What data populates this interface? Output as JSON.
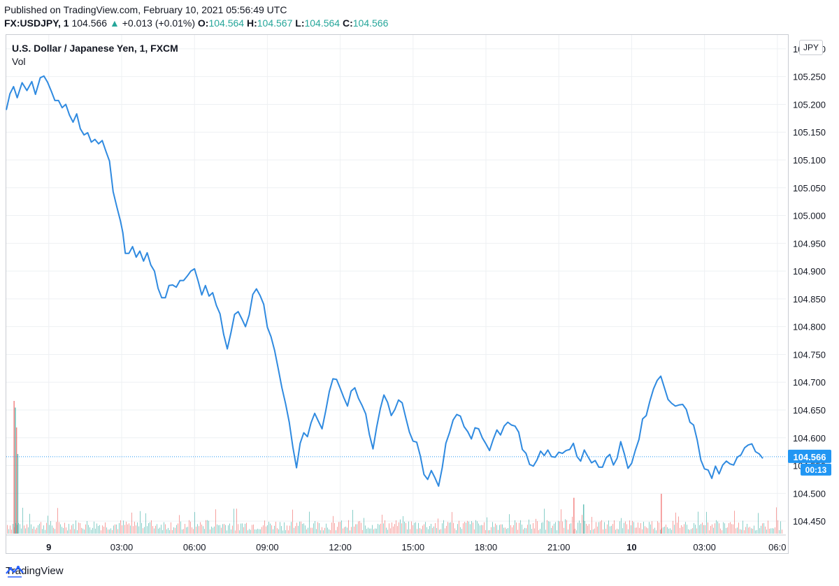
{
  "header": {
    "published": "Published on TradingView.com, February 10, 2021 05:56:49 UTC",
    "symbol": "FX:USDJPY, 1",
    "last": "104.566",
    "arrow": "▲",
    "change": "+0.013 (+0.01%)",
    "o_label": "O:",
    "o_value": "104.564",
    "h_label": "H:",
    "h_value": "104.567",
    "l_label": "L:",
    "l_value": "104.564",
    "c_label": "C:",
    "c_value": "104.566"
  },
  "legend": {
    "title": "U.S. Dollar / Japanese Yen, 1, FXCM",
    "vol": "Vol"
  },
  "currency_button": "JPY",
  "price_tag": {
    "value": "104.566",
    "countdown": "00:13"
  },
  "footer": {
    "brand": "TradingView",
    "icon": "tradingview-logo-icon"
  },
  "colors": {
    "line": "#2f8ae0",
    "grid": "#eef0f3",
    "up": "#26a69a",
    "vol_up": "#26a69a",
    "vol_down": "#ef5350",
    "tag": "#2196f3"
  },
  "chart_data": {
    "type": "line",
    "title": "U.S. Dollar / Japanese Yen, 1, FXCM",
    "ylim": [
      104.425,
      105.325
    ],
    "y_ticks": [
      "105.300",
      "105.250",
      "105.200",
      "105.150",
      "105.100",
      "105.050",
      "105.000",
      "104.950",
      "104.900",
      "104.850",
      "104.800",
      "104.750",
      "104.700",
      "104.650",
      "104.600",
      "104.550",
      "104.500",
      "104.450"
    ],
    "x_ticks": [
      {
        "label": "9",
        "hour": 0,
        "bold": true
      },
      {
        "label": "03:00",
        "hour": 3
      },
      {
        "label": "06:00",
        "hour": 6
      },
      {
        "label": "09:00",
        "hour": 9
      },
      {
        "label": "12:00",
        "hour": 12
      },
      {
        "label": "15:00",
        "hour": 15
      },
      {
        "label": "18:00",
        "hour": 18
      },
      {
        "label": "21:00",
        "hour": 21
      },
      {
        "label": "10",
        "hour": 24,
        "bold": true
      },
      {
        "label": "03:00",
        "hour": 27
      },
      {
        "label": "06:0",
        "hour": 30
      }
    ],
    "xlim_hours": [
      -1.75,
      30.35
    ],
    "last_price": 104.566,
    "series": [
      {
        "name": "USDJPY",
        "points": [
          [
            -1.75,
            105.19
          ],
          [
            -1.6,
            105.22
          ],
          [
            -1.45,
            105.23
          ],
          [
            -1.3,
            105.215
          ],
          [
            -1.1,
            105.235
          ],
          [
            -0.9,
            105.225
          ],
          [
            -0.7,
            105.24
          ],
          [
            -0.55,
            105.22
          ],
          [
            -0.35,
            105.245
          ],
          [
            -0.2,
            105.255
          ],
          [
            -0.05,
            105.24
          ],
          [
            0.1,
            105.225
          ],
          [
            0.25,
            105.205
          ],
          [
            0.4,
            105.21
          ],
          [
            0.55,
            105.19
          ],
          [
            0.7,
            105.2
          ],
          [
            0.85,
            105.18
          ],
          [
            1.0,
            105.17
          ],
          [
            1.15,
            105.18
          ],
          [
            1.3,
            105.16
          ],
          [
            1.45,
            105.145
          ],
          [
            1.6,
            105.15
          ],
          [
            1.75,
            105.13
          ],
          [
            1.9,
            105.14
          ],
          [
            2.05,
            105.125
          ],
          [
            2.2,
            105.135
          ],
          [
            2.35,
            105.115
          ],
          [
            2.5,
            105.1
          ],
          [
            2.65,
            105.04
          ],
          [
            2.8,
            105.02
          ],
          [
            2.95,
            104.99
          ],
          [
            3.05,
            104.97
          ],
          [
            3.15,
            104.93
          ],
          [
            3.3,
            104.935
          ],
          [
            3.45,
            104.94
          ],
          [
            3.6,
            104.925
          ],
          [
            3.75,
            104.935
          ],
          [
            3.9,
            104.92
          ],
          [
            4.05,
            104.93
          ],
          [
            4.2,
            104.915
          ],
          [
            4.35,
            104.9
          ],
          [
            4.5,
            104.87
          ],
          [
            4.65,
            104.85
          ],
          [
            4.8,
            104.855
          ],
          [
            4.95,
            104.87
          ],
          [
            5.1,
            104.875
          ],
          [
            5.25,
            104.87
          ],
          [
            5.4,
            104.885
          ],
          [
            5.55,
            104.88
          ],
          [
            5.7,
            104.895
          ],
          [
            5.85,
            104.9
          ],
          [
            6.0,
            104.905
          ],
          [
            6.15,
            104.88
          ],
          [
            6.3,
            104.86
          ],
          [
            6.45,
            104.87
          ],
          [
            6.6,
            104.855
          ],
          [
            6.75,
            104.86
          ],
          [
            6.9,
            104.84
          ],
          [
            7.05,
            104.82
          ],
          [
            7.2,
            104.79
          ],
          [
            7.35,
            104.76
          ],
          [
            7.5,
            104.79
          ],
          [
            7.65,
            104.82
          ],
          [
            7.8,
            104.83
          ],
          [
            7.95,
            104.81
          ],
          [
            8.1,
            104.8
          ],
          [
            8.25,
            104.82
          ],
          [
            8.4,
            104.86
          ],
          [
            8.55,
            104.865
          ],
          [
            8.7,
            104.86
          ],
          [
            8.85,
            104.84
          ],
          [
            9.0,
            104.8
          ],
          [
            9.15,
            104.78
          ],
          [
            9.3,
            104.76
          ],
          [
            9.45,
            104.72
          ],
          [
            9.6,
            104.69
          ],
          [
            9.75,
            104.66
          ],
          [
            9.9,
            104.63
          ],
          [
            10.05,
            104.58
          ],
          [
            10.2,
            104.55
          ],
          [
            10.35,
            104.59
          ],
          [
            10.5,
            104.61
          ],
          [
            10.65,
            104.6
          ],
          [
            10.8,
            104.63
          ],
          [
            10.95,
            104.64
          ],
          [
            11.1,
            104.63
          ],
          [
            11.25,
            104.615
          ],
          [
            11.4,
            104.65
          ],
          [
            11.55,
            104.68
          ],
          [
            11.7,
            104.71
          ],
          [
            11.85,
            104.705
          ],
          [
            12.0,
            104.69
          ],
          [
            12.15,
            104.67
          ],
          [
            12.3,
            104.66
          ],
          [
            12.45,
            104.68
          ],
          [
            12.6,
            104.69
          ],
          [
            12.75,
            104.67
          ],
          [
            12.9,
            104.66
          ],
          [
            13.05,
            104.64
          ],
          [
            13.2,
            104.61
          ],
          [
            13.35,
            104.58
          ],
          [
            13.5,
            104.62
          ],
          [
            13.65,
            104.65
          ],
          [
            13.8,
            104.68
          ],
          [
            13.95,
            104.66
          ],
          [
            14.1,
            104.64
          ],
          [
            14.25,
            104.65
          ],
          [
            14.4,
            104.67
          ],
          [
            14.55,
            104.66
          ],
          [
            14.7,
            104.64
          ],
          [
            14.85,
            104.61
          ],
          [
            15.0,
            104.595
          ],
          [
            15.15,
            104.59
          ],
          [
            15.3,
            104.57
          ],
          [
            15.45,
            104.53
          ],
          [
            15.6,
            104.525
          ],
          [
            15.75,
            104.54
          ],
          [
            15.9,
            104.53
          ],
          [
            16.05,
            104.51
          ],
          [
            16.2,
            104.55
          ],
          [
            16.35,
            104.59
          ],
          [
            16.5,
            104.61
          ],
          [
            16.65,
            104.63
          ],
          [
            16.8,
            104.645
          ],
          [
            16.95,
            104.635
          ],
          [
            17.1,
            104.62
          ],
          [
            17.25,
            104.61
          ],
          [
            17.4,
            104.6
          ],
          [
            17.55,
            104.615
          ],
          [
            17.7,
            104.62
          ],
          [
            17.85,
            104.6
          ],
          [
            18.0,
            104.59
          ],
          [
            18.15,
            104.575
          ],
          [
            18.3,
            104.6
          ],
          [
            18.45,
            104.61
          ],
          [
            18.6,
            104.605
          ],
          [
            18.75,
            104.62
          ],
          [
            18.9,
            104.63
          ],
          [
            19.05,
            104.62
          ],
          [
            19.2,
            104.625
          ],
          [
            19.35,
            104.61
          ],
          [
            19.5,
            104.58
          ],
          [
            19.65,
            104.57
          ],
          [
            19.8,
            104.555
          ],
          [
            19.95,
            104.545
          ],
          [
            20.1,
            104.56
          ],
          [
            20.25,
            104.575
          ],
          [
            20.4,
            104.57
          ],
          [
            20.55,
            104.575
          ],
          [
            20.7,
            104.57
          ],
          [
            20.85,
            104.565
          ],
          [
            21.0,
            104.575
          ],
          [
            21.15,
            104.57
          ],
          [
            21.3,
            104.58
          ],
          [
            21.45,
            104.575
          ],
          [
            21.6,
            104.59
          ],
          [
            21.75,
            104.565
          ],
          [
            21.9,
            104.56
          ],
          [
            22.05,
            104.575
          ],
          [
            22.2,
            104.57
          ],
          [
            22.35,
            104.555
          ],
          [
            22.5,
            104.56
          ],
          [
            22.65,
            104.545
          ],
          [
            22.8,
            104.55
          ],
          [
            22.95,
            104.56
          ],
          [
            23.1,
            104.57
          ],
          [
            23.25,
            104.55
          ],
          [
            23.4,
            104.565
          ],
          [
            23.55,
            104.59
          ],
          [
            23.7,
            104.575
          ],
          [
            23.85,
            104.545
          ],
          [
            24.0,
            104.555
          ],
          [
            24.15,
            104.575
          ],
          [
            24.3,
            104.6
          ],
          [
            24.45,
            104.63
          ],
          [
            24.6,
            104.64
          ],
          [
            24.75,
            104.665
          ],
          [
            24.9,
            104.69
          ],
          [
            25.05,
            104.7
          ],
          [
            25.2,
            104.715
          ],
          [
            25.35,
            104.69
          ],
          [
            25.5,
            104.67
          ],
          [
            25.65,
            104.66
          ],
          [
            25.8,
            104.66
          ],
          [
            25.95,
            104.655
          ],
          [
            26.1,
            104.66
          ],
          [
            26.25,
            104.65
          ],
          [
            26.4,
            104.63
          ],
          [
            26.55,
            104.62
          ],
          [
            26.7,
            104.6
          ],
          [
            26.85,
            104.56
          ],
          [
            27.0,
            104.545
          ],
          [
            27.15,
            104.54
          ],
          [
            27.3,
            104.53
          ],
          [
            27.45,
            104.545
          ],
          [
            27.6,
            104.535
          ],
          [
            27.75,
            104.55
          ],
          [
            27.9,
            104.56
          ],
          [
            28.05,
            104.55
          ],
          [
            28.2,
            104.555
          ],
          [
            28.35,
            104.565
          ],
          [
            28.5,
            104.57
          ],
          [
            28.65,
            104.58
          ],
          [
            28.8,
            104.59
          ],
          [
            28.95,
            104.585
          ],
          [
            29.1,
            104.575
          ],
          [
            29.25,
            104.57
          ],
          [
            29.4,
            104.565
          ]
        ]
      }
    ],
    "volume": {
      "name": "Vol",
      "spikes": [
        {
          "hour": -1.45,
          "rel": 1.0,
          "dir": "down"
        },
        {
          "hour": -1.4,
          "rel": 0.95,
          "dir": "up"
        },
        {
          "hour": -1.35,
          "rel": 0.8,
          "dir": "down"
        },
        {
          "hour": -1.3,
          "rel": 0.6,
          "dir": "up"
        },
        {
          "hour": 21.6,
          "rel": 0.27,
          "dir": "down"
        },
        {
          "hour": 22.0,
          "rel": 0.22,
          "dir": "up"
        },
        {
          "hour": 25.2,
          "rel": 0.3,
          "dir": "down"
        }
      ],
      "base_rel": 0.06
    }
  }
}
